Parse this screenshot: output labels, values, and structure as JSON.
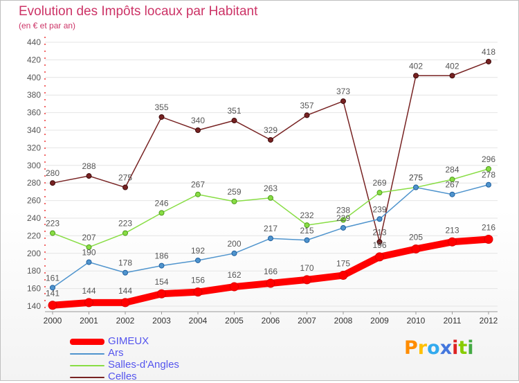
{
  "header": {
    "title": "Evolution des Impôts locaux par Habitant",
    "subtitle": "(en € et par an)"
  },
  "logo": {
    "text": "Proxiti",
    "letters": [
      "P",
      "r",
      "o",
      "x",
      "i",
      "t",
      "i"
    ]
  },
  "colors": {
    "title": "#cc3366",
    "legend_text": "#5555ee",
    "axis": "#ee3333",
    "grid": "#e4e4e4",
    "label": "#555555"
  },
  "chart_data": {
    "type": "line",
    "title": "Evolution des Impôts locaux par Habitant",
    "subtitle": "(en € et par an)",
    "xlabel": "",
    "ylabel": "",
    "x": [
      "2000",
      "2001",
      "2002",
      "2003",
      "2004",
      "2005",
      "2006",
      "2007",
      "2008",
      "2009",
      "2010",
      "2011",
      "2012"
    ],
    "ylim": [
      140,
      440
    ],
    "yticks": [
      140,
      160,
      180,
      200,
      220,
      240,
      260,
      280,
      300,
      320,
      340,
      360,
      380,
      400,
      420,
      440
    ],
    "grid": true,
    "legend_position": "bottom-left",
    "series": [
      {
        "name": "GIMEUX",
        "color": "#ff0000",
        "values": [
          141,
          144,
          144,
          154,
          156,
          162,
          166,
          170,
          175,
          196,
          205,
          213,
          216
        ]
      },
      {
        "name": "Ars",
        "color": "#4f94cd",
        "values": [
          161,
          190,
          178,
          186,
          192,
          200,
          217,
          215,
          229,
          239,
          275,
          267,
          278
        ]
      },
      {
        "name": "Salles-d'Angles",
        "color": "#88dd44",
        "values": [
          223,
          207,
          223,
          246,
          267,
          259,
          263,
          232,
          238,
          269,
          275,
          284,
          296
        ]
      },
      {
        "name": "Celles",
        "color": "#772222",
        "values": [
          280,
          288,
          275,
          355,
          340,
          351,
          329,
          357,
          373,
          213,
          402,
          402,
          418
        ]
      }
    ]
  }
}
